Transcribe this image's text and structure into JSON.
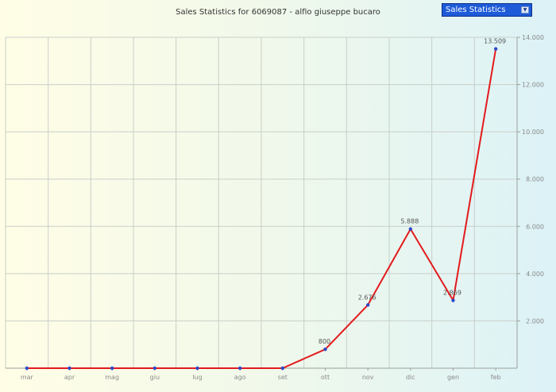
{
  "header": {
    "title": "Sales Statistics for 6069087 - alfio giuseppe bucaro",
    "selector_value": "Sales Statistics"
  },
  "colors": {
    "line": "#e31a1c",
    "point": "#2f47c7",
    "grid": "#c9cfc9",
    "tick_text": "#8a8a8a"
  },
  "chart_data": {
    "type": "line",
    "title": "Sales Statistics for 6069087 - alfio giuseppe bucaro",
    "categories": [
      "mar",
      "apr",
      "mag",
      "giu",
      "lug",
      "ago",
      "set",
      "ott",
      "nov",
      "dic",
      "gen",
      "feb"
    ],
    "series": [
      {
        "values": [
          0,
          0,
          0,
          0,
          0,
          0,
          0,
          800,
          2676,
          5888,
          2869,
          13509
        ]
      }
    ],
    "data_labels": [
      "",
      "",
      "",
      "",
      "",
      "",
      "",
      "800",
      "2.676",
      "5.888",
      "2.869",
      "13.509"
    ],
    "y_axis": {
      "position": "right",
      "ylim": [
        0,
        14000
      ],
      "ticks": [
        2000,
        4000,
        6000,
        8000,
        10000,
        12000,
        14000
      ],
      "tick_labels": [
        "2.000",
        "4.000",
        "6.000",
        "8.000",
        "10.000",
        "12.000",
        "14.000"
      ]
    },
    "grid": true,
    "legend": "none"
  }
}
